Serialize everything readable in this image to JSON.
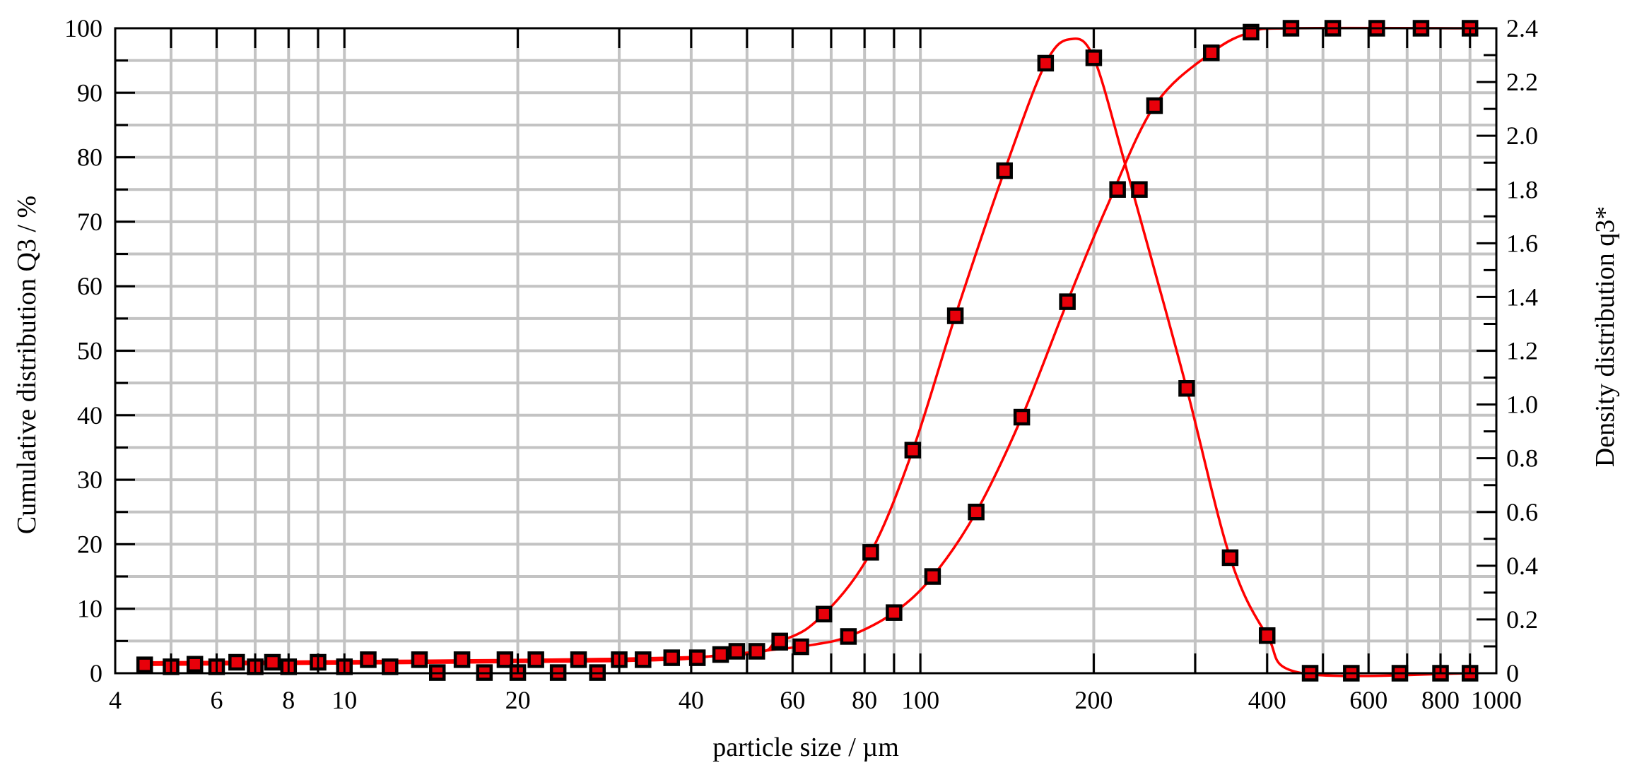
{
  "chart_data": {
    "type": "scatter",
    "xscale": "log",
    "xlim": [
      4,
      1000
    ],
    "ylim": [
      0,
      100
    ],
    "y2lim": [
      0,
      2.4
    ],
    "xlabel": "particle size / µm",
    "ylabel": "Cumulative distribution Q3 / %",
    "y2label": "Density distribution q3*",
    "x_ticks": [
      4,
      6,
      8,
      10,
      20,
      40,
      60,
      80,
      100,
      200,
      400,
      600,
      800,
      1000
    ],
    "x_tick_labels": [
      "4",
      "6",
      "8",
      "10",
      "20",
      "40",
      "60",
      "80",
      "100",
      "200",
      "400",
      "600",
      "800",
      "1000"
    ],
    "y_ticks": [
      0,
      10,
      20,
      30,
      40,
      50,
      60,
      70,
      80,
      90,
      100
    ],
    "y_tick_labels": [
      "0",
      "10",
      "20",
      "30",
      "40",
      "50",
      "60",
      "70",
      "80",
      "90",
      "100"
    ],
    "y2_ticks": [
      0,
      0.2,
      0.4,
      0.6,
      0.8,
      1.0,
      1.2,
      1.4,
      1.6,
      1.8,
      2.0,
      2.2,
      2.4
    ],
    "y2_tick_labels": [
      "0",
      "0.2",
      "0.4",
      "0.6",
      "0.8",
      "1.0",
      "1.2",
      "1.4",
      "1.6",
      "1.8",
      "2.0",
      "2.2",
      "2.4"
    ],
    "grid": true,
    "series_color": "#ff0000",
    "marker_fill": "#e8000a",
    "marker_edge": "#000000",
    "series": [
      {
        "axis": "left",
        "points": [
          [
            4.5,
            1.3
          ],
          [
            5.0,
            1.0
          ],
          [
            5.5,
            1.4
          ],
          [
            6.0,
            1.0
          ],
          [
            6.5,
            1.7
          ],
          [
            7.0,
            1.0
          ],
          [
            7.5,
            1.7
          ],
          [
            8.0,
            1.0
          ],
          [
            9.0,
            1.7
          ],
          [
            10.0,
            1.0
          ],
          [
            11.0,
            2.1
          ],
          [
            12.0,
            1.0
          ],
          [
            13.5,
            2.1
          ],
          [
            14.5,
            0.1
          ],
          [
            16.0,
            2.1
          ],
          [
            17.5,
            0.1
          ],
          [
            19.0,
            2.1
          ],
          [
            20.0,
            0.1
          ],
          [
            21.5,
            2.1
          ],
          [
            23.5,
            0.1
          ],
          [
            25.5,
            2.1
          ],
          [
            27.5,
            0.1
          ],
          [
            30.0,
            2.1
          ],
          [
            33.0,
            2.1
          ],
          [
            37.0,
            2.4
          ],
          [
            41.0,
            2.4
          ],
          [
            45.0,
            2.9
          ],
          [
            48.0,
            3.4
          ],
          [
            52.0,
            3.4
          ],
          [
            57.0,
            4.8
          ],
          [
            62.0,
            4.1
          ],
          [
            75.0,
            5.7
          ],
          [
            90.0,
            9.4
          ],
          [
            105.0,
            15.0
          ],
          [
            125.0,
            25.0
          ],
          [
            150.0,
            39.7
          ],
          [
            180.0,
            57.6
          ],
          [
            255.0,
            88.0
          ],
          [
            320.0,
            96.2
          ],
          [
            375.0,
            99.4
          ],
          [
            440.0,
            100.0
          ],
          [
            520.0,
            100.0
          ],
          [
            620.0,
            100.0
          ],
          [
            740.0,
            100.0
          ],
          [
            900.0,
            100.0
          ]
        ],
        "curve": [
          [
            4.5,
            1.3
          ],
          [
            30,
            1.9
          ],
          [
            45,
            2.8
          ],
          [
            55,
            3.6
          ],
          [
            65,
            4.4
          ],
          [
            75,
            5.7
          ],
          [
            90,
            9.4
          ],
          [
            105,
            15.0
          ],
          [
            125,
            25.0
          ],
          [
            150,
            39.7
          ],
          [
            180,
            57.6
          ],
          [
            210,
            72.0
          ],
          [
            255,
            88.0
          ],
          [
            320,
            96.2
          ],
          [
            375,
            99.4
          ],
          [
            440,
            100.0
          ],
          [
            900,
            100.0
          ]
        ]
      },
      {
        "axis": "right",
        "points": [
          [
            57.0,
            0.12
          ],
          [
            68.0,
            0.22
          ],
          [
            82.0,
            0.45
          ],
          [
            97.0,
            0.83
          ],
          [
            115.0,
            1.33
          ],
          [
            140.0,
            1.87
          ],
          [
            165.0,
            2.27
          ],
          [
            200.0,
            2.29
          ],
          [
            220.0,
            1.8
          ],
          [
            240.0,
            1.8
          ],
          [
            290.0,
            1.06
          ],
          [
            345.0,
            0.43
          ],
          [
            400.0,
            0.14
          ],
          [
            475.0,
            0.0
          ],
          [
            560.0,
            0.0
          ],
          [
            680.0,
            0.0
          ],
          [
            800.0,
            0.0
          ],
          [
            900.0,
            0.0
          ]
        ],
        "curve": [
          [
            4.5,
            0.04
          ],
          [
            40,
            0.06
          ],
          [
            57,
            0.12
          ],
          [
            68,
            0.22
          ],
          [
            82,
            0.45
          ],
          [
            97,
            0.83
          ],
          [
            115,
            1.33
          ],
          [
            140,
            1.87
          ],
          [
            165,
            2.27
          ],
          [
            183,
            2.36
          ],
          [
            200,
            2.29
          ],
          [
            225,
            1.92
          ],
          [
            255,
            1.5
          ],
          [
            290,
            1.06
          ],
          [
            345,
            0.43
          ],
          [
            400,
            0.14
          ],
          [
            460,
            0.0
          ],
          [
            900,
            0.0
          ]
        ]
      }
    ]
  }
}
